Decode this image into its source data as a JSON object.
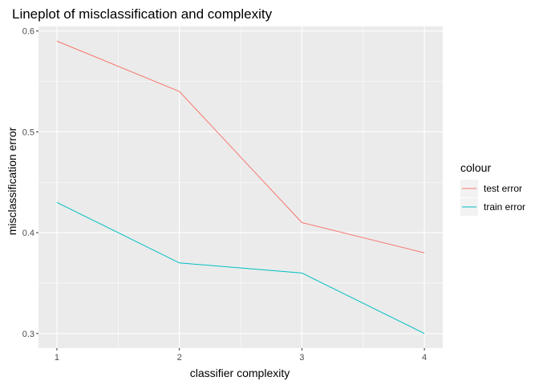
{
  "chart_data": {
    "type": "line",
    "title": "Lineplot of misclassification and complexity",
    "xlabel": "classifier complexity",
    "ylabel": "misclassification error",
    "x": [
      1,
      2,
      3,
      4
    ],
    "xticks": [
      "1",
      "2",
      "3",
      "4"
    ],
    "yticks": [
      "0.3",
      "0.4",
      "0.5",
      "0.6"
    ],
    "xlim": [
      0.85,
      4.15
    ],
    "ylim": [
      0.2855,
      0.6045
    ],
    "grid": true,
    "legend_title": "colour",
    "legend_position": "right",
    "series": [
      {
        "name": "test error",
        "color": "#F8766D",
        "values": [
          0.59,
          0.54,
          0.41,
          0.38
        ]
      },
      {
        "name": "train error",
        "color": "#00BFC4",
        "values": [
          0.43,
          0.37,
          0.36,
          0.3
        ]
      }
    ]
  },
  "colors": {
    "panel_background": "#EBEBEB",
    "grid_major": "#FFFFFF",
    "tick_text": "#4D4D4D"
  }
}
